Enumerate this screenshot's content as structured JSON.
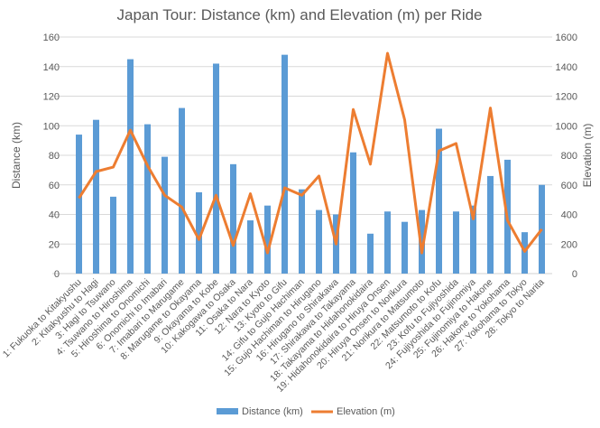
{
  "chart_data": {
    "type": "bar+line",
    "title": "Japan Tour: Distance (km) and Elevation (m) per Ride",
    "ylabel": "Distance (km)",
    "y2label": "Elevation (m)",
    "ylim": [
      0,
      160
    ],
    "y2lim": [
      0,
      1600
    ],
    "yticks": [
      0,
      20,
      40,
      60,
      80,
      100,
      120,
      140,
      160
    ],
    "y2ticks": [
      0,
      200,
      400,
      600,
      800,
      1000,
      1200,
      1400,
      1600
    ],
    "grid": true,
    "legend_position": "bottom",
    "categories": [
      "1: Fukuoka to Kitakyushu",
      "2: Kitakyushu to Hagi",
      "3: Hagi to Tsuwano",
      "4: Tsuwano to Hiroshima",
      "5: Hiroshima to Onomichi",
      "6: Onomichi to Imabari",
      "7: Imabari to Marugame",
      "8: Marugame to Okayama",
      "9: Okayama to Kobe",
      "10: Kakogawa to Osaka",
      "11: Osaka to Nara",
      "12: Nara to Kyoto",
      "13: Kyoto to Gifu",
      "14: Gifu to Gujo Hachiman",
      "15: Gujo Hachiman to Hirugano",
      "16: Hirugano to Shirakawa",
      "17: Shirakawa to Takayama",
      "18: Takayama to Hidahonokidaira",
      "19: Hidahonokidaira to Hiruya Onsen",
      "20: Hiruya Onsen to Norikura",
      "21: Norikura to Matsumoto",
      "22: Matsumoto to Kofu",
      "23: Kofu to Fujiyoshida",
      "24: Fujiyoshida to Fujinomiya",
      "25: Fujinomiya to Hakone",
      "26: Hakone to Yokohama",
      "27: Yokohama to Tokyo",
      "28: Tokyo to Narita"
    ],
    "series": [
      {
        "name": "Distance (km)",
        "type": "bar",
        "axis": "left",
        "color": "#5b9bd5",
        "values": [
          94,
          104,
          52,
          145,
          101,
          79,
          112,
          55,
          142,
          74,
          36,
          46,
          148,
          57,
          43,
          40,
          82,
          27,
          42,
          35,
          43,
          98,
          42,
          46,
          66,
          77,
          28,
          60
        ]
      },
      {
        "name": "Elevation (m)",
        "type": "line",
        "axis": "right",
        "color": "#ed7d31",
        "values": [
          510,
          690,
          720,
          970,
          730,
          530,
          450,
          230,
          530,
          190,
          540,
          140,
          580,
          530,
          660,
          200,
          1110,
          740,
          1490,
          1040,
          140,
          830,
          880,
          370,
          1120,
          360,
          150,
          300
        ]
      }
    ]
  }
}
